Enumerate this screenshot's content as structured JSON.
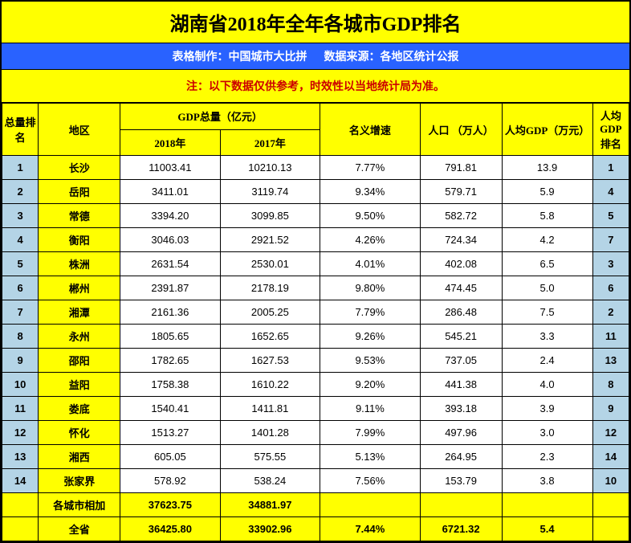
{
  "title": "湖南省2018年全年各城市GDP排名",
  "subtitle": "表格制作：中国城市大比拼      数据来源：各地区统计公报",
  "note": "注：以下数据仅供参考，时效性以当地统计局为准。",
  "headers": {
    "rank": "总量排名",
    "region": "地区",
    "gdp_total": "GDP总量（亿元）",
    "gdp_2018": "2018年",
    "gdp_2017": "2017年",
    "growth": "名义增速",
    "pop": "人口 （万人）",
    "pc_gdp": "人均GDP（万元）",
    "pc_rank": "人均GDP排名"
  },
  "rows": [
    {
      "rank": "1",
      "region": "长沙",
      "g2018": "11003.41",
      "g2017": "10210.13",
      "growth": "7.77%",
      "pop": "791.81",
      "pc": "13.9",
      "pcrank": "1"
    },
    {
      "rank": "2",
      "region": "岳阳",
      "g2018": "3411.01",
      "g2017": "3119.74",
      "growth": "9.34%",
      "pop": "579.71",
      "pc": "5.9",
      "pcrank": "4"
    },
    {
      "rank": "3",
      "region": "常德",
      "g2018": "3394.20",
      "g2017": "3099.85",
      "growth": "9.50%",
      "pop": "582.72",
      "pc": "5.8",
      "pcrank": "5"
    },
    {
      "rank": "4",
      "region": "衡阳",
      "g2018": "3046.03",
      "g2017": "2921.52",
      "growth": "4.26%",
      "pop": "724.34",
      "pc": "4.2",
      "pcrank": "7"
    },
    {
      "rank": "5",
      "region": "株洲",
      "g2018": "2631.54",
      "g2017": "2530.01",
      "growth": "4.01%",
      "pop": "402.08",
      "pc": "6.5",
      "pcrank": "3"
    },
    {
      "rank": "6",
      "region": "郴州",
      "g2018": "2391.87",
      "g2017": "2178.19",
      "growth": "9.80%",
      "pop": "474.45",
      "pc": "5.0",
      "pcrank": "6"
    },
    {
      "rank": "7",
      "region": "湘潭",
      "g2018": "2161.36",
      "g2017": "2005.25",
      "growth": "7.79%",
      "pop": "286.48",
      "pc": "7.5",
      "pcrank": "2"
    },
    {
      "rank": "8",
      "region": "永州",
      "g2018": "1805.65",
      "g2017": "1652.65",
      "growth": "9.26%",
      "pop": "545.21",
      "pc": "3.3",
      "pcrank": "11"
    },
    {
      "rank": "9",
      "region": "邵阳",
      "g2018": "1782.65",
      "g2017": "1627.53",
      "growth": "9.53%",
      "pop": "737.05",
      "pc": "2.4",
      "pcrank": "13"
    },
    {
      "rank": "10",
      "region": "益阳",
      "g2018": "1758.38",
      "g2017": "1610.22",
      "growth": "9.20%",
      "pop": "441.38",
      "pc": "4.0",
      "pcrank": "8"
    },
    {
      "rank": "11",
      "region": "娄底",
      "g2018": "1540.41",
      "g2017": "1411.81",
      "growth": "9.11%",
      "pop": "393.18",
      "pc": "3.9",
      "pcrank": "9"
    },
    {
      "rank": "12",
      "region": "怀化",
      "g2018": "1513.27",
      "g2017": "1401.28",
      "growth": "7.99%",
      "pop": "497.96",
      "pc": "3.0",
      "pcrank": "12"
    },
    {
      "rank": "13",
      "region": "湘西",
      "g2018": "605.05",
      "g2017": "575.55",
      "growth": "5.13%",
      "pop": "264.95",
      "pc": "2.3",
      "pcrank": "14"
    },
    {
      "rank": "14",
      "region": "张家界",
      "g2018": "578.92",
      "g2017": "538.24",
      "growth": "7.56%",
      "pop": "153.79",
      "pc": "3.8",
      "pcrank": "10"
    }
  ],
  "sum": {
    "label": "各城市相加",
    "g2018": "37623.75",
    "g2017": "34881.97"
  },
  "province": {
    "label": "全省",
    "g2018": "36425.80",
    "g2017": "33902.96",
    "growth": "7.44%",
    "pop": "6721.32",
    "pc": "5.4"
  },
  "colors": {
    "yellow": "#ffff00",
    "blue": "#2962ff",
    "lightblue": "#b4d4e6",
    "red": "#cc0000",
    "border": "#000000"
  }
}
